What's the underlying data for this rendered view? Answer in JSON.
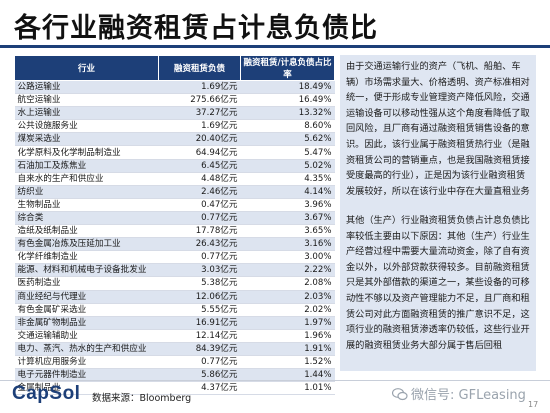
{
  "title": "各行业融资租赁占计息负债比",
  "table": {
    "headers": [
      "行业",
      "融资租赁负债",
      "融资租赁/计息负债占比率"
    ],
    "rows": [
      [
        "公路运输业",
        "1.69亿元",
        "18.49%"
      ],
      [
        "航空运输业",
        "275.66亿元",
        "16.49%"
      ],
      [
        "水上运输业",
        "37.27亿元",
        "13.32%"
      ],
      [
        "公共设施服务业",
        "1.69亿元",
        "8.60%"
      ],
      [
        "煤炭采选业",
        "20.40亿元",
        "5.62%"
      ],
      [
        "化学原料及化学制品制造业",
        "64.94亿元",
        "5.47%"
      ],
      [
        "石油加工及炼焦业",
        "6.45亿元",
        "5.02%"
      ],
      [
        "自来水的生产和供应业",
        "4.48亿元",
        "4.35%"
      ],
      [
        "纺织业",
        "2.46亿元",
        "4.14%"
      ],
      [
        "生物制品业",
        "0.47亿元",
        "3.96%"
      ],
      [
        "综合类",
        "0.77亿元",
        "3.67%"
      ],
      [
        "造纸及纸制品业",
        "17.78亿元",
        "3.65%"
      ],
      [
        "有色金属冶炼及压延加工业",
        "26.43亿元",
        "3.16%"
      ],
      [
        "化学纤维制造业",
        "0.77亿元",
        "3.00%"
      ],
      [
        "能源、材料和机械电子设备批发业",
        "3.03亿元",
        "2.22%"
      ],
      [
        "医药制造业",
        "5.38亿元",
        "2.08%"
      ],
      [
        "商业经纪与代理业",
        "12.06亿元",
        "2.03%"
      ],
      [
        "有色金属矿采选业",
        "5.55亿元",
        "2.02%"
      ],
      [
        "非金属矿物制品业",
        "16.91亿元",
        "1.97%"
      ],
      [
        "交通运输辅助业",
        "12.14亿元",
        "1.96%"
      ],
      [
        "电力、蒸汽、热水的生产和供应业",
        "84.39亿元",
        "1.91%"
      ],
      [
        "计算机应用服务业",
        "0.77亿元",
        "1.52%"
      ],
      [
        "电子元器件制造业",
        "5.86亿元",
        "1.44%"
      ],
      [
        "金属制品业",
        "4.37亿元",
        "1.01%"
      ]
    ]
  },
  "paragraph1": "由于交通运输行业的资产（飞机、船舶、车辆）市场需求量大、价格透明、资产标准相对统一，便于形成专业管理资产降低风险，交通运输设备可以移动性强从这个角度看降低了取回风险，且厂商有通过融资租赁销售设备的意识。因此，该行业属于融资租赁热行业（是融资租赁公司的营销重点，也是我国融资租赁接受度最高的行业），正是因为该行业融资租赁发展较好，所以在该行业中存在大量直租业务",
  "paragraph2": "其他（生产）行业融资租赁负债占计息负债比率较低主要由以下原因：其他（生产）行业生产经营过程中需要大量流动资金，除了自有资金以外，以外部贷款获得较多。目前融资租赁只是其外部借款的渠道之一，某些设备的可移动性不够以及资产管理能力不足，且厂商和租赁公司对此方面融资租赁的推广意识不足，这项行业的融资租赁渗透率仍较低，这些行业开展的融资租赁业务大部分属于售后回租",
  "footer": {
    "logo": "CapSol",
    "source": "数据来源：Bloomberg",
    "wechat": "微信号: GFLeasing",
    "page": "17"
  },
  "colors": {
    "header": "#1d3f78",
    "row_alt": "#dde4f0",
    "panel": "#dfe6f2"
  }
}
